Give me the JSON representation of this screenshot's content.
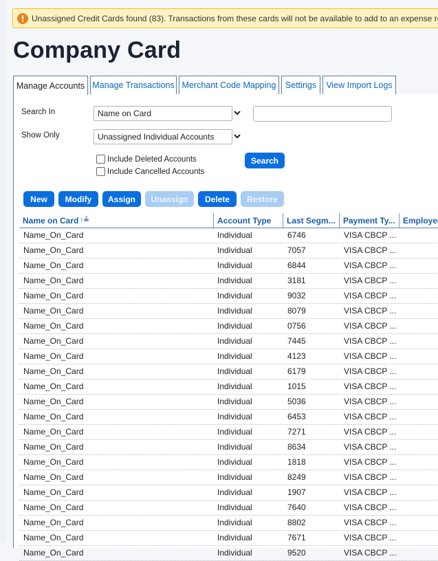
{
  "banner": {
    "text": "Unassigned Credit Cards found (83). Transactions from these cards will not be available to add to an expense report."
  },
  "page": {
    "title": "Company Card"
  },
  "tabs": [
    {
      "label": "Manage Accounts"
    },
    {
      "label": "Manage Transactions"
    },
    {
      "label": "Merchant Code Mapping"
    },
    {
      "label": "Settings"
    },
    {
      "label": "View Import Logs"
    }
  ],
  "filters": {
    "search_in_label": "Search In",
    "search_in_value": "Name on Card",
    "search_text_value": "",
    "show_only_label": "Show Only",
    "show_only_value": "Unassigned Individual Accounts",
    "include_deleted_label": "Include Deleted Accounts",
    "include_cancelled_label": "Include Cancelled Accounts",
    "search_button": "Search"
  },
  "toolbar": {
    "new": "New",
    "modify": "Modify",
    "assign": "Assign",
    "unassign": "Unassign",
    "delete": "Delete",
    "restore": "Restore"
  },
  "table": {
    "columns": [
      "Name on Card",
      "Account Type",
      "Last Segm...",
      "Payment Ty...",
      "Employee"
    ],
    "sort_indicator": "↑≟",
    "rows": [
      [
        "Name_On_Card",
        "Individual",
        "6746",
        "VISA CBCP ..."
      ],
      [
        "Name_On_Card",
        "Individual",
        "7057",
        "VISA CBCP ..."
      ],
      [
        "Name_On_Card",
        "Individual",
        "6844",
        "VISA CBCP ..."
      ],
      [
        "Name_On_Card",
        "Individual",
        "3181",
        "VISA CBCP ..."
      ],
      [
        "Name_On_Card",
        "Individual",
        "9032",
        "VISA CBCP ..."
      ],
      [
        "Name_On_Card",
        "Individual",
        "8079",
        "VISA CBCP ..."
      ],
      [
        "Name_On_Card",
        "Individual",
        "0756",
        "VISA CBCP ..."
      ],
      [
        "Name_On_Card",
        "Individual",
        "7445",
        "VISA CBCP ..."
      ],
      [
        "Name_On_Card",
        "Individual",
        "4123",
        "VISA CBCP ..."
      ],
      [
        "Name_On_Card",
        "Individual",
        "6179",
        "VISA CBCP ..."
      ],
      [
        "Name_On_Card",
        "Individual",
        "1015",
        "VISA CBCP ..."
      ],
      [
        "Name_On_Card",
        "Individual",
        "5036",
        "VISA CBCP ..."
      ],
      [
        "Name_On_Card",
        "Individual",
        "6453",
        "VISA CBCP ..."
      ],
      [
        "Name_On_Card",
        "Individual",
        "7271",
        "VISA CBCP ..."
      ],
      [
        "Name_On_Card",
        "Individual",
        "8634",
        "VISA CBCP ..."
      ],
      [
        "Name_On_Card",
        "Individual",
        "1818",
        "VISA CBCP ..."
      ],
      [
        "Name_On_Card",
        "Individual",
        "8249",
        "VISA CBCP ..."
      ],
      [
        "Name_On_Card",
        "Individual",
        "1907",
        "VISA CBCP ..."
      ],
      [
        "Name_On_Card",
        "Individual",
        "7640",
        "VISA CBCP ..."
      ],
      [
        "Name_On_Card",
        "Individual",
        "8802",
        "VISA CBCP ..."
      ],
      [
        "Name_On_Card",
        "Individual",
        "7671",
        "VISA CBCP ..."
      ],
      [
        "Name_On_Card",
        "Individual",
        "9520",
        "VISA CBCP ..."
      ]
    ]
  },
  "colors": {
    "accent": "#0b6ee0",
    "banner_bg": "#fdf2c4",
    "banner_border": "#f0c419",
    "warning_icon": "#e8831b",
    "header_text": "#1d5ea6"
  },
  "icons": {
    "warning": "warning-icon",
    "dropdown": "chevron-down-icon"
  }
}
